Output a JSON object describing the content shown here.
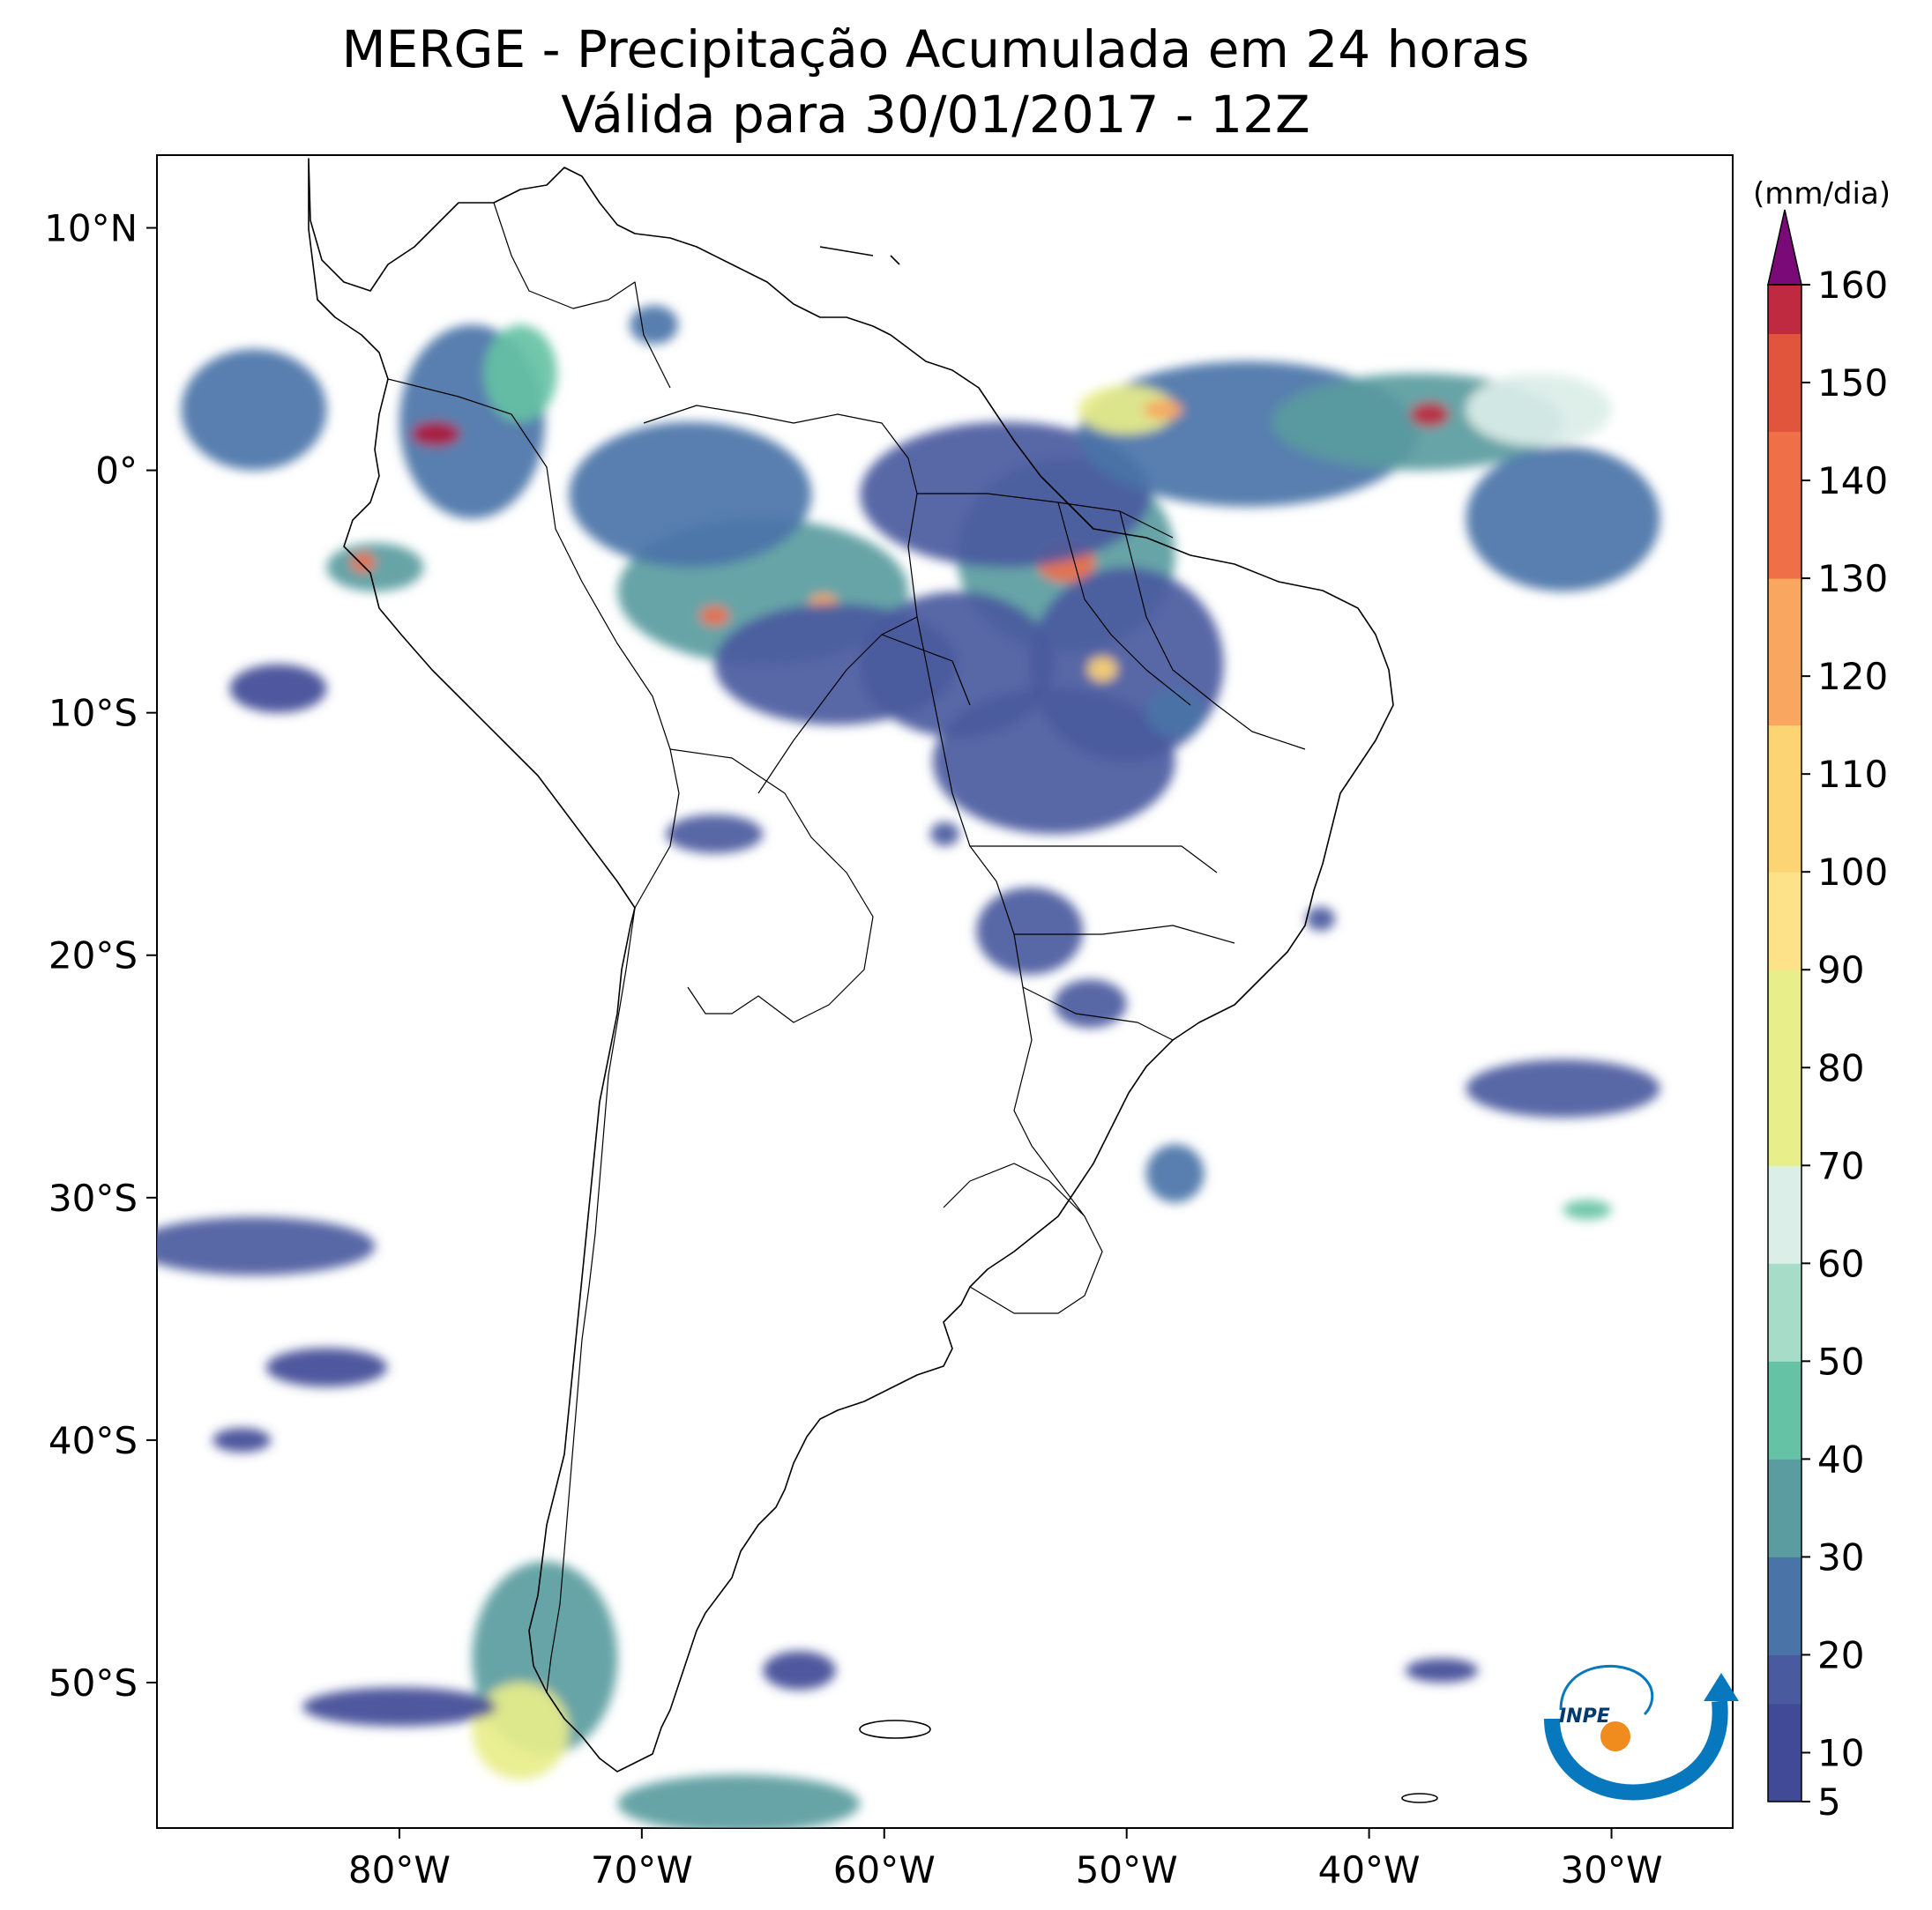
{
  "title": {
    "line1": "MERGE - Precipitação Acumulada em 24 horas",
    "line2": "Válida para 30/01/2017 - 12Z"
  },
  "map": {
    "lon_range": [
      -90,
      -25
    ],
    "lat_range": [
      -56,
      13
    ],
    "x_ticks": [
      {
        "lon": -80,
        "label": "80°W"
      },
      {
        "lon": -70,
        "label": "70°W"
      },
      {
        "lon": -60,
        "label": "60°W"
      },
      {
        "lon": -50,
        "label": "50°W"
      },
      {
        "lon": -40,
        "label": "40°W"
      },
      {
        "lon": -30,
        "label": "30°W"
      }
    ],
    "y_ticks": [
      {
        "lat": 10,
        "label": "10°N"
      },
      {
        "lat": 0,
        "label": "0°"
      },
      {
        "lat": -10,
        "label": "10°S"
      },
      {
        "lat": -20,
        "label": "20°S"
      },
      {
        "lat": -30,
        "label": "30°S"
      },
      {
        "lat": -40,
        "label": "40°S"
      },
      {
        "lat": -50,
        "label": "50°S"
      }
    ],
    "precip_blobs": [
      {
        "lon": -52.5,
        "lat": -3.5,
        "rx": 4.5,
        "ry": 4,
        "level": 35
      },
      {
        "lon": -52.5,
        "lat": -3.8,
        "rx": 1.2,
        "ry": 0.8,
        "level": 130
      },
      {
        "lon": -55,
        "lat": -1,
        "rx": 6,
        "ry": 3,
        "level": 15
      },
      {
        "lon": -45,
        "lat": 1.5,
        "rx": 7,
        "ry": 3,
        "level": 25
      },
      {
        "lon": -38,
        "lat": 2,
        "rx": 6,
        "ry": 2,
        "level": 30
      },
      {
        "lon": -37.5,
        "lat": 2.3,
        "rx": 0.8,
        "ry": 0.5,
        "level": 155
      },
      {
        "lon": -33,
        "lat": 2.5,
        "rx": 3,
        "ry": 1.5,
        "level": 60
      },
      {
        "lon": -32,
        "lat": -2,
        "rx": 4,
        "ry": 3,
        "level": 20
      },
      {
        "lon": -50,
        "lat": 2.5,
        "rx": 2,
        "ry": 1,
        "level": 80
      },
      {
        "lon": -48.5,
        "lat": 2.5,
        "rx": 0.8,
        "ry": 0.4,
        "level": 125
      },
      {
        "lon": -65,
        "lat": -5,
        "rx": 6,
        "ry": 3,
        "level": 30
      },
      {
        "lon": -67,
        "lat": -6,
        "rx": 0.6,
        "ry": 0.4,
        "level": 130
      },
      {
        "lon": -62.5,
        "lat": -5.5,
        "rx": 0.6,
        "ry": 0.4,
        "level": 125
      },
      {
        "lon": -68,
        "lat": -1,
        "rx": 5,
        "ry": 3,
        "level": 20
      },
      {
        "lon": -62,
        "lat": -8,
        "rx": 5,
        "ry": 2.5,
        "level": 18
      },
      {
        "lon": -57,
        "lat": -8,
        "rx": 4,
        "ry": 3,
        "level": 15
      },
      {
        "lon": -50,
        "lat": -8,
        "rx": 4,
        "ry": 4,
        "level": 18
      },
      {
        "lon": -51,
        "lat": -8.2,
        "rx": 0.6,
        "ry": 0.5,
        "level": 110
      },
      {
        "lon": -53,
        "lat": -12,
        "rx": 5,
        "ry": 3,
        "level": 15
      },
      {
        "lon": -77,
        "lat": 2,
        "rx": 3,
        "ry": 4,
        "level": 20
      },
      {
        "lon": -75,
        "lat": 4,
        "rx": 1.5,
        "ry": 2,
        "level": 40
      },
      {
        "lon": -78.5,
        "lat": 1.5,
        "rx": 1,
        "ry": 0.5,
        "level": 160
      },
      {
        "lon": -81,
        "lat": -4,
        "rx": 2,
        "ry": 1,
        "level": 30
      },
      {
        "lon": -81.5,
        "lat": -3.8,
        "rx": 0.5,
        "ry": 0.4,
        "level": 140
      },
      {
        "lon": -86,
        "lat": 2.5,
        "rx": 3,
        "ry": 2.5,
        "level": 20
      },
      {
        "lon": -54,
        "lat": -19,
        "rx": 2.2,
        "ry": 1.8,
        "level": 15
      },
      {
        "lon": -51.5,
        "lat": -22,
        "rx": 1.5,
        "ry": 1,
        "level": 18
      },
      {
        "lon": -48,
        "lat": -29,
        "rx": 1.2,
        "ry": 1.2,
        "level": 20
      },
      {
        "lon": -32,
        "lat": -25.5,
        "rx": 4,
        "ry": 1.2,
        "level": 15
      },
      {
        "lon": -86,
        "lat": -32,
        "rx": 5,
        "ry": 1.2,
        "level": 15
      },
      {
        "lon": -83,
        "lat": -37,
        "rx": 2.5,
        "ry": 0.8,
        "level": 12
      },
      {
        "lon": -86.5,
        "lat": -40,
        "rx": 1.2,
        "ry": 0.5,
        "level": 12
      },
      {
        "lon": -74,
        "lat": -49,
        "rx": 3,
        "ry": 4,
        "level": 30
      },
      {
        "lon": -75,
        "lat": -52,
        "rx": 2,
        "ry": 2,
        "level": 70
      },
      {
        "lon": -80,
        "lat": -51,
        "rx": 4,
        "ry": 0.8,
        "level": 12
      },
      {
        "lon": -66,
        "lat": -55,
        "rx": 5,
        "ry": 1.2,
        "level": 30
      },
      {
        "lon": -63.5,
        "lat": -49.5,
        "rx": 1.5,
        "ry": 0.8,
        "level": 12
      },
      {
        "lon": -37,
        "lat": -49.5,
        "rx": 1.5,
        "ry": 0.5,
        "level": 12
      },
      {
        "lon": -57.5,
        "lat": -15,
        "rx": 0.6,
        "ry": 0.5,
        "level": 15
      },
      {
        "lon": -67,
        "lat": -15,
        "rx": 2,
        "ry": 0.8,
        "level": 15
      },
      {
        "lon": -85,
        "lat": -9,
        "rx": 2,
        "ry": 1,
        "level": 12
      },
      {
        "lon": -48,
        "lat": -10,
        "rx": 1.2,
        "ry": 1,
        "level": 20
      },
      {
        "lon": -42,
        "lat": -18.5,
        "rx": 0.6,
        "ry": 0.5,
        "level": 15
      },
      {
        "lon": -31,
        "lat": -30.5,
        "rx": 1,
        "ry": 0.4,
        "level": 40
      },
      {
        "lon": -69.5,
        "lat": 6,
        "rx": 1,
        "ry": 0.8,
        "level": 20
      }
    ]
  },
  "colorbar": {
    "unit": "(mm/dia)",
    "min": 5,
    "max": 160,
    "levels": [
      5,
      10,
      15,
      20,
      25,
      30,
      35,
      40,
      45,
      50,
      55,
      60,
      65,
      70,
      75,
      80,
      85,
      90,
      95,
      100,
      105,
      110,
      115,
      120,
      125,
      130,
      135,
      140,
      145,
      150,
      155,
      160
    ],
    "tick_labels": [
      "5",
      "10",
      "20",
      "30",
      "40",
      "50",
      "60",
      "70",
      "80",
      "90",
      "100",
      "110",
      "120",
      "130",
      "140",
      "150",
      "160"
    ],
    "colors": {
      "low": "#404a96",
      "mid_blue": "#4a74a8",
      "teal": "#5a9ca0",
      "green": "#66c2a4",
      "pale": "#dbeee8",
      "yellow": "#e8ee8a",
      "gold": "#fdd474",
      "orange": "#f89a55",
      "red": "#e0553c",
      "crimson": "#b0183c",
      "over": "#7a0a78"
    }
  },
  "logo": {
    "text": "INPE",
    "colors": {
      "blue": "#0878be",
      "orange": "#f08c1e"
    }
  }
}
